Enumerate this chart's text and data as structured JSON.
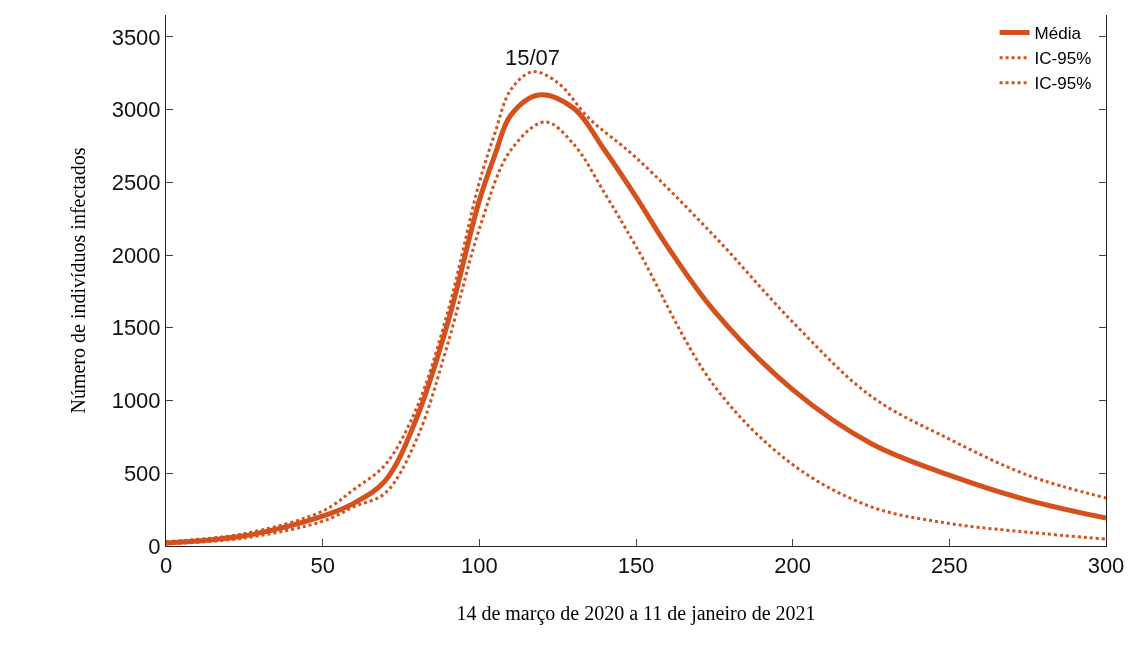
{
  "chart_data": {
    "type": "line",
    "xlabel": "14 de março de 2020 a 11 de janeiro de 2021",
    "ylabel": "Número de indivíduos infectados",
    "xlim": [
      0,
      300
    ],
    "xticks": [
      0,
      50,
      100,
      150,
      200,
      250,
      300
    ],
    "ylim": [
      0,
      3650
    ],
    "yticks": [
      0,
      500,
      1000,
      1500,
      2000,
      2500,
      3000,
      3500
    ],
    "grid": false,
    "legend": "top right",
    "marker": "none",
    "annotations": [
      {
        "text": "15/07",
        "x": 117,
        "y": 3260
      }
    ],
    "series": [
      {
        "name": "Média",
        "color": "#d4501c",
        "line_style": "solid",
        "x": [
          0,
          25,
          50,
          60,
          70,
          80,
          90,
          100,
          105,
          110,
          119,
          130,
          140,
          150,
          160,
          175,
          200,
          225,
          250,
          275,
          300
        ],
        "values": [
          20,
          70,
          205,
          295,
          450,
          880,
          1540,
          2375,
          2690,
          2960,
          3100,
          3010,
          2720,
          2400,
          2060,
          1615,
          1075,
          705,
          487,
          315,
          192
        ]
      },
      {
        "name": "IC-95%",
        "color": "#d4501c",
        "line_style": "dotted",
        "x": [
          0,
          25,
          50,
          60,
          70,
          80,
          90,
          100,
          105,
          110,
          117,
          125,
          135,
          150,
          175,
          200,
          225,
          250,
          275,
          300
        ],
        "values": [
          30,
          85,
          240,
          390,
          560,
          950,
          1615,
          2500,
          2840,
          3135,
          3260,
          3185,
          2940,
          2670,
          2130,
          1540,
          1030,
          735,
          487,
          330
        ]
      },
      {
        "name": "IC-95%",
        "color": "#d4501c",
        "line_style": "dotted",
        "x": [
          0,
          25,
          50,
          60,
          70,
          80,
          90,
          100,
          110,
          121,
          130,
          140,
          150,
          175,
          200,
          225,
          250,
          275,
          300
        ],
        "values": [
          15,
          55,
          170,
          270,
          365,
          735,
          1395,
          2180,
          2720,
          2915,
          2765,
          2425,
          2060,
          1100,
          560,
          270,
          155,
          95,
          48
        ]
      }
    ]
  }
}
